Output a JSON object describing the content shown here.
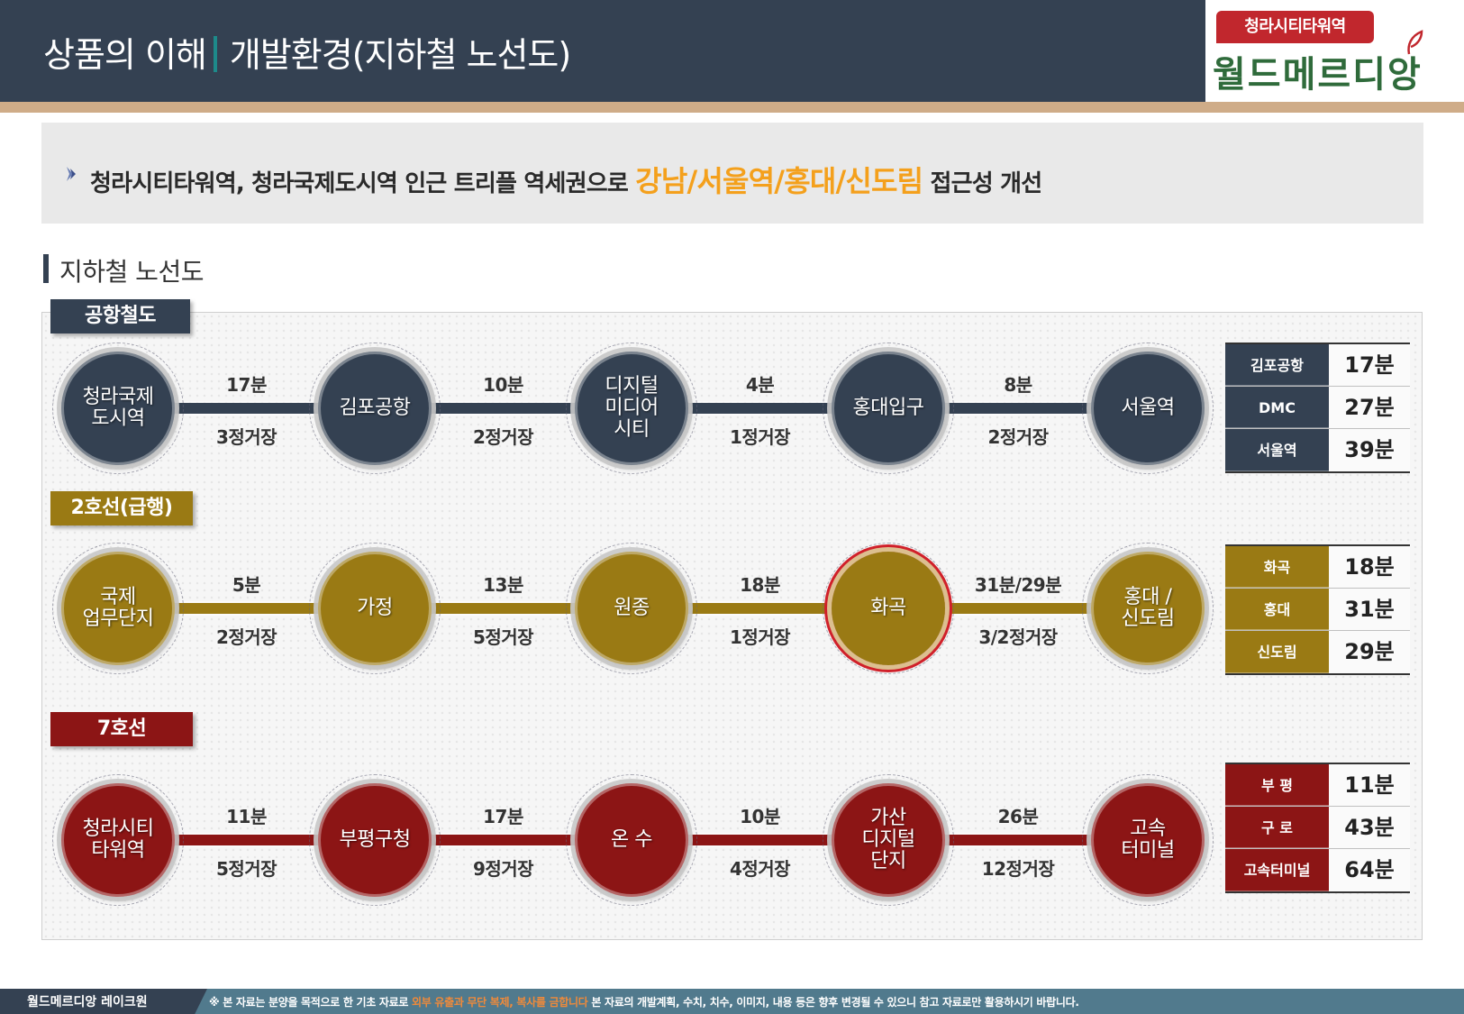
{
  "header": {
    "title_main": "상품의 이해",
    "title_sub": "개발환경(지하철 노선도)"
  },
  "brand": {
    "tag": "청라시티타워역",
    "name": "월드메르디앙",
    "colors": {
      "tag": "#c1272d",
      "name": "#2f6b3b"
    }
  },
  "summary": {
    "bullet_icon": "diamond-bullet-icon",
    "text_before": "청라시티타워역, 청라국제도시역 인근 트리플 역세권으로 ",
    "highlight": "강남/서울역/홍대/신도림",
    "text_after": " 접근성 개선",
    "highlight_color": "#f4a01c"
  },
  "section": {
    "title": "지하철 노선도"
  },
  "lines": [
    {
      "name": "공항철도",
      "color": "#344152",
      "stations": [
        "청라국제\n도시역",
        "김포공항",
        "디지털\n미디어\n시티",
        "홍대입구",
        "서울역"
      ],
      "segments": [
        {
          "time": "17분",
          "stops": "3정거장"
        },
        {
          "time": "10분",
          "stops": "2정거장"
        },
        {
          "time": "4분",
          "stops": "1정거장"
        },
        {
          "time": "8분",
          "stops": "2정거장"
        }
      ],
      "table": [
        {
          "name": "김포공항",
          "value": "17분"
        },
        {
          "name": "DMC",
          "value": "27분"
        },
        {
          "name": "서울역",
          "value": "39분"
        }
      ]
    },
    {
      "name": "2호선(급행)",
      "color": "#9a7a14",
      "highlight_station_index": 3,
      "highlight_color": "#d0202a",
      "stations": [
        "국제\n업무단지",
        "가정",
        "원종",
        "화곡",
        "홍대 /\n신도림"
      ],
      "segments": [
        {
          "time": "5분",
          "stops": "2정거장"
        },
        {
          "time": "13분",
          "stops": "5정거장"
        },
        {
          "time": "18분",
          "stops": "1정거장"
        },
        {
          "time": "31분/29분",
          "stops": "3/2정거장"
        }
      ],
      "table": [
        {
          "name": "화곡",
          "value": "18분"
        },
        {
          "name": "홍대",
          "value": "31분"
        },
        {
          "name": "신도림",
          "value": "29분"
        }
      ]
    },
    {
      "name": "7호선",
      "color": "#8c1515",
      "stations": [
        "청라시티\n타워역",
        "부평구청",
        "온 수",
        "가산\n디지털\n단지",
        "고속\n터미널"
      ],
      "segments": [
        {
          "time": "11분",
          "stops": "5정거장"
        },
        {
          "time": "17분",
          "stops": "9정거장"
        },
        {
          "time": "10분",
          "stops": "4정거장"
        },
        {
          "time": "26분",
          "stops": "12정거장"
        }
      ],
      "table": [
        {
          "name": "부 평",
          "value": "11분"
        },
        {
          "name": "구 로",
          "value": "43분"
        },
        {
          "name": "고속터미널",
          "value": "64분"
        }
      ]
    }
  ],
  "footer": {
    "brand": "월드메르디앙 레이크원",
    "note_before": "※ 본 자료는 분양을 목적으로 한 기초 자료로 ",
    "note_warn": "외부 유출과 무단 복제, 복사를 금합니다",
    "note_after": " 본 자료의 개발계획, 수치, 치수, 이미지, 내용 등은 향후 변경될 수 있으니 참고 자료로만 활용하시기 바랍니다."
  }
}
